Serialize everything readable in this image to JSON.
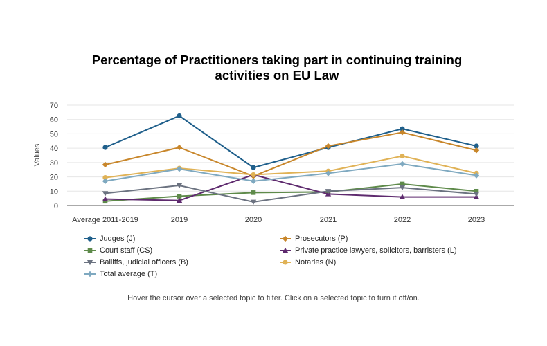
{
  "chart_data": {
    "type": "line",
    "title": "Percentage of Practitioners taking part in continuing training activities on EU Law",
    "xlabel": "",
    "ylabel": "Values",
    "categories": [
      "Average 2011-2019",
      "2019",
      "2020",
      "2021",
      "2022",
      "2023"
    ],
    "ylim": [
      0,
      70
    ],
    "yticks": [
      0,
      10,
      20,
      30,
      40,
      50,
      60,
      70
    ],
    "grid": true,
    "legend_position": "bottom",
    "series": [
      {
        "name": "Judges (J)",
        "color": "#1f5f8b",
        "marker": "circle",
        "values": [
          40.5,
          62.5,
          26.5,
          40.5,
          53.5,
          41.5
        ]
      },
      {
        "name": "Prosecutors (P)",
        "color": "#c8862a",
        "marker": "diamond",
        "values": [
          28.5,
          40.5,
          20.5,
          41.5,
          51,
          38.5
        ]
      },
      {
        "name": "Court staff (CS)",
        "color": "#5e8a4a",
        "marker": "square",
        "values": [
          3,
          6.5,
          9,
          9.5,
          15,
          10
        ]
      },
      {
        "name": "Private practice lawyers, solicitors, barristers (L)",
        "color": "#5e2a6e",
        "marker": "triangle-up",
        "values": [
          4.5,
          3.5,
          21.5,
          8,
          6,
          6
        ]
      },
      {
        "name": "Bailiffs, judicial officers (B)",
        "color": "#6b7280",
        "marker": "triangle-down",
        "values": [
          8.5,
          14,
          2.5,
          10,
          12.5,
          8
        ]
      },
      {
        "name": "Notaries (N)",
        "color": "#e0b256",
        "marker": "circle",
        "values": [
          19.5,
          26,
          21.5,
          24,
          34.5,
          22.5
        ]
      },
      {
        "name": "Total average (T)",
        "color": "#7fa9c0",
        "marker": "diamond",
        "values": [
          17,
          25.5,
          17,
          22.5,
          29,
          21
        ]
      }
    ]
  },
  "footer_note": "Hover the cursor over a selected topic to filter. Click on a selected topic to turn it off/on."
}
